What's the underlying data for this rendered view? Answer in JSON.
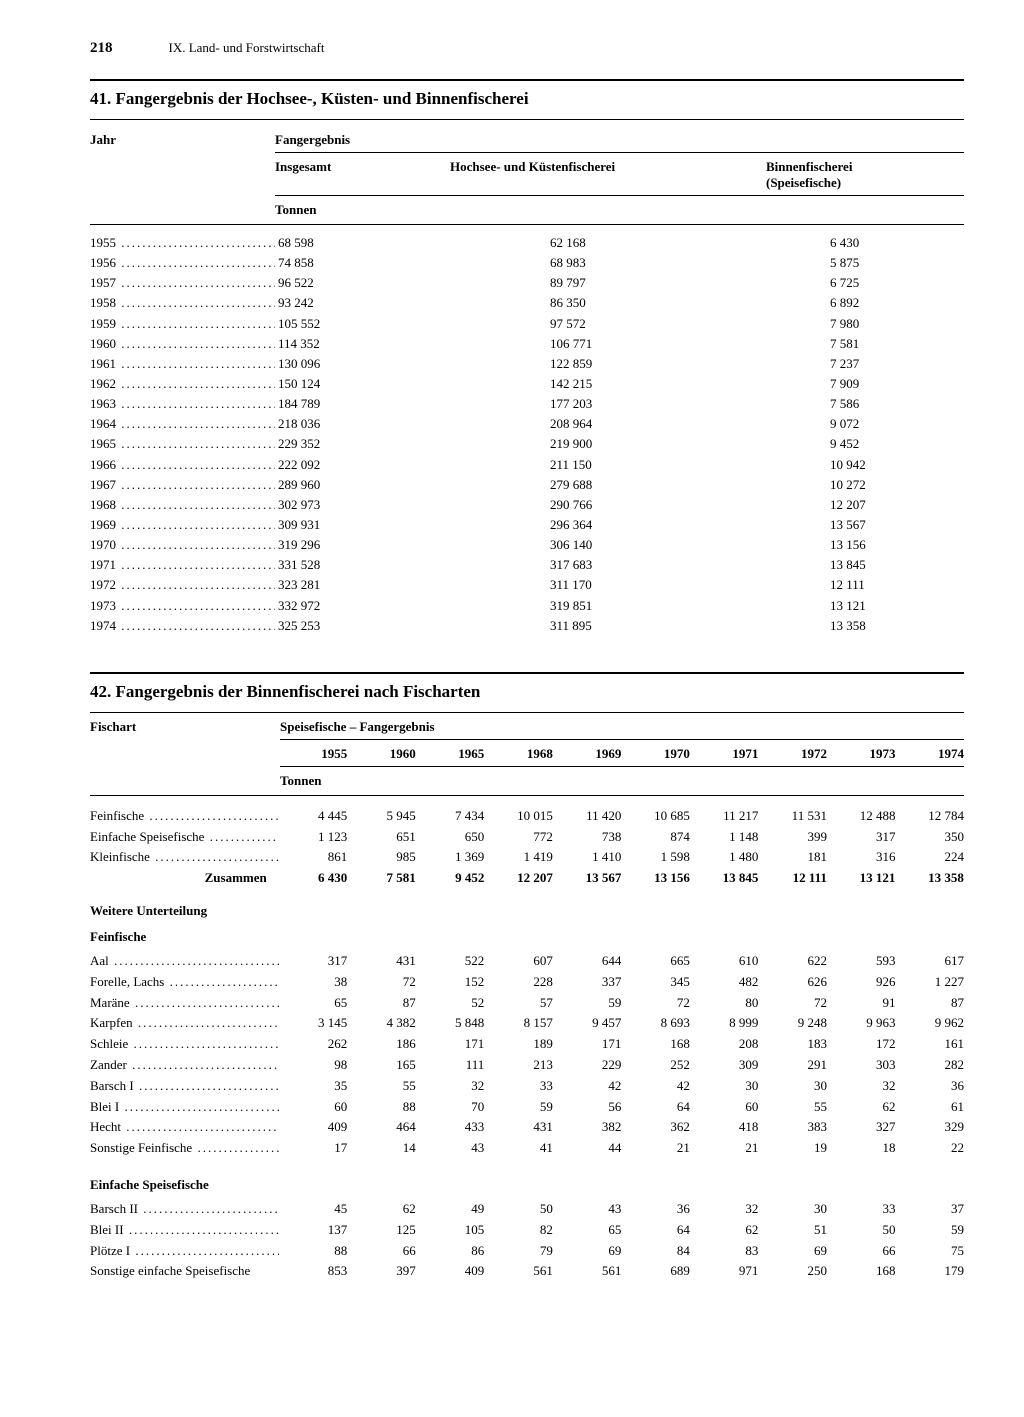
{
  "page_number": "218",
  "chapter": "IX. Land- und Forstwirtschaft",
  "t41": {
    "title": "41. Fangergebnis der Hochsee-, Küsten- und Binnenfischerei",
    "h_jahr": "Jahr",
    "h_fang": "Fangergebnis",
    "h_ins": "Insgesamt",
    "h_hoch": "Hochsee- und Küstenfischerei",
    "h_bin1": "Binnenfischerei",
    "h_bin2": "(Speisefische)",
    "h_ton": "Tonnen",
    "rows": [
      {
        "y": "1955",
        "a": "68 598",
        "b": "62 168",
        "c": "6 430"
      },
      {
        "y": "1956",
        "a": "74 858",
        "b": "68 983",
        "c": "5 875"
      },
      {
        "y": "1957",
        "a": "96 522",
        "b": "89 797",
        "c": "6 725"
      },
      {
        "y": "1958",
        "a": "93 242",
        "b": "86 350",
        "c": "6 892"
      },
      {
        "y": "1959",
        "a": "105 552",
        "b": "97 572",
        "c": "7 980"
      },
      {
        "y": "1960",
        "a": "114 352",
        "b": "106 771",
        "c": "7 581"
      },
      {
        "y": "1961",
        "a": "130 096",
        "b": "122 859",
        "c": "7 237"
      },
      {
        "y": "1962",
        "a": "150 124",
        "b": "142 215",
        "c": "7 909"
      },
      {
        "y": "1963",
        "a": "184 789",
        "b": "177 203",
        "c": "7 586"
      },
      {
        "y": "1964",
        "a": "218 036",
        "b": "208 964",
        "c": "9 072"
      },
      {
        "y": "1965",
        "a": "229 352",
        "b": "219 900",
        "c": "9 452"
      },
      {
        "y": "1966",
        "a": "222 092",
        "b": "211 150",
        "c": "10 942"
      },
      {
        "y": "1967",
        "a": "289 960",
        "b": "279 688",
        "c": "10 272"
      },
      {
        "y": "1968",
        "a": "302 973",
        "b": "290 766",
        "c": "12 207"
      },
      {
        "y": "1969",
        "a": "309 931",
        "b": "296 364",
        "c": "13 567"
      },
      {
        "y": "1970",
        "a": "319 296",
        "b": "306 140",
        "c": "13 156"
      },
      {
        "y": "1971",
        "a": "331 528",
        "b": "317 683",
        "c": "13 845"
      },
      {
        "y": "1972",
        "a": "323 281",
        "b": "311 170",
        "c": "12 111"
      },
      {
        "y": "1973",
        "a": "332 972",
        "b": "319 851",
        "c": "13 121"
      },
      {
        "y": "1974",
        "a": "325 253",
        "b": "311 895",
        "c": "13 358"
      }
    ]
  },
  "t42": {
    "title": "42. Fangergebnis der Binnenfischerei nach Fischarten",
    "h_fisch": "Fischart",
    "h_speise": "Speisefische – Fangergebnis",
    "h_ton": "Tonnen",
    "years": [
      "1955",
      "1960",
      "1965",
      "1968",
      "1969",
      "1970",
      "1971",
      "1972",
      "1973",
      "1974"
    ],
    "group1": [
      {
        "n": "Feinfische",
        "v": [
          "4 445",
          "5 945",
          "7 434",
          "10 015",
          "11 420",
          "10 685",
          "11 217",
          "11 531",
          "12 488",
          "12 784"
        ]
      },
      {
        "n": "Einfache Speisefische",
        "v": [
          "1 123",
          "651",
          "650",
          "772",
          "738",
          "874",
          "1 148",
          "399",
          "317",
          "350"
        ]
      },
      {
        "n": "Kleinfische",
        "v": [
          "861",
          "985",
          "1 369",
          "1 419",
          "1 410",
          "1 598",
          "1 480",
          "181",
          "316",
          "224"
        ]
      }
    ],
    "sum_label": "Zusammen",
    "sum": [
      "6 430",
      "7 581",
      "9 452",
      "12 207",
      "13 567",
      "13 156",
      "13 845",
      "12 111",
      "13 121",
      "13 358"
    ],
    "sub_heading": "Weitere Unterteilung",
    "g2_heading": "Feinfische",
    "group2": [
      {
        "n": "Aal",
        "v": [
          "317",
          "431",
          "522",
          "607",
          "644",
          "665",
          "610",
          "622",
          "593",
          "617"
        ]
      },
      {
        "n": "Forelle, Lachs",
        "v": [
          "38",
          "72",
          "152",
          "228",
          "337",
          "345",
          "482",
          "626",
          "926",
          "1 227"
        ]
      },
      {
        "n": "Maräne",
        "v": [
          "65",
          "87",
          "52",
          "57",
          "59",
          "72",
          "80",
          "72",
          "91",
          "87"
        ]
      },
      {
        "n": "Karpfen",
        "v": [
          "3 145",
          "4 382",
          "5 848",
          "8 157",
          "9 457",
          "8 693",
          "8 999",
          "9 248",
          "9 963",
          "9 962"
        ]
      },
      {
        "n": "Schleie",
        "v": [
          "262",
          "186",
          "171",
          "189",
          "171",
          "168",
          "208",
          "183",
          "172",
          "161"
        ]
      },
      {
        "n": "Zander",
        "v": [
          "98",
          "165",
          "111",
          "213",
          "229",
          "252",
          "309",
          "291",
          "303",
          "282"
        ]
      },
      {
        "n": "Barsch I",
        "v": [
          "35",
          "55",
          "32",
          "33",
          "42",
          "42",
          "30",
          "30",
          "32",
          "36"
        ]
      },
      {
        "n": "Blei I",
        "v": [
          "60",
          "88",
          "70",
          "59",
          "56",
          "64",
          "60",
          "55",
          "62",
          "61"
        ]
      },
      {
        "n": "Hecht",
        "v": [
          "409",
          "464",
          "433",
          "431",
          "382",
          "362",
          "418",
          "383",
          "327",
          "329"
        ]
      },
      {
        "n": "Sonstige Feinfische",
        "v": [
          "17",
          "14",
          "43",
          "41",
          "44",
          "21",
          "21",
          "19",
          "18",
          "22"
        ]
      }
    ],
    "g3_heading": "Einfache Speisefische",
    "group3": [
      {
        "n": "Barsch II",
        "v": [
          "45",
          "62",
          "49",
          "50",
          "43",
          "36",
          "32",
          "30",
          "33",
          "37"
        ]
      },
      {
        "n": "Blei II",
        "v": [
          "137",
          "125",
          "105",
          "82",
          "65",
          "64",
          "62",
          "51",
          "50",
          "59"
        ]
      },
      {
        "n": "Plötze I",
        "v": [
          "88",
          "66",
          "86",
          "79",
          "69",
          "84",
          "83",
          "69",
          "66",
          "75"
        ]
      },
      {
        "n": "Sonstige einfache Speisefische",
        "v": [
          "853",
          "397",
          "409",
          "561",
          "561",
          "689",
          "971",
          "250",
          "168",
          "179"
        ],
        "nodot": true
      }
    ]
  }
}
